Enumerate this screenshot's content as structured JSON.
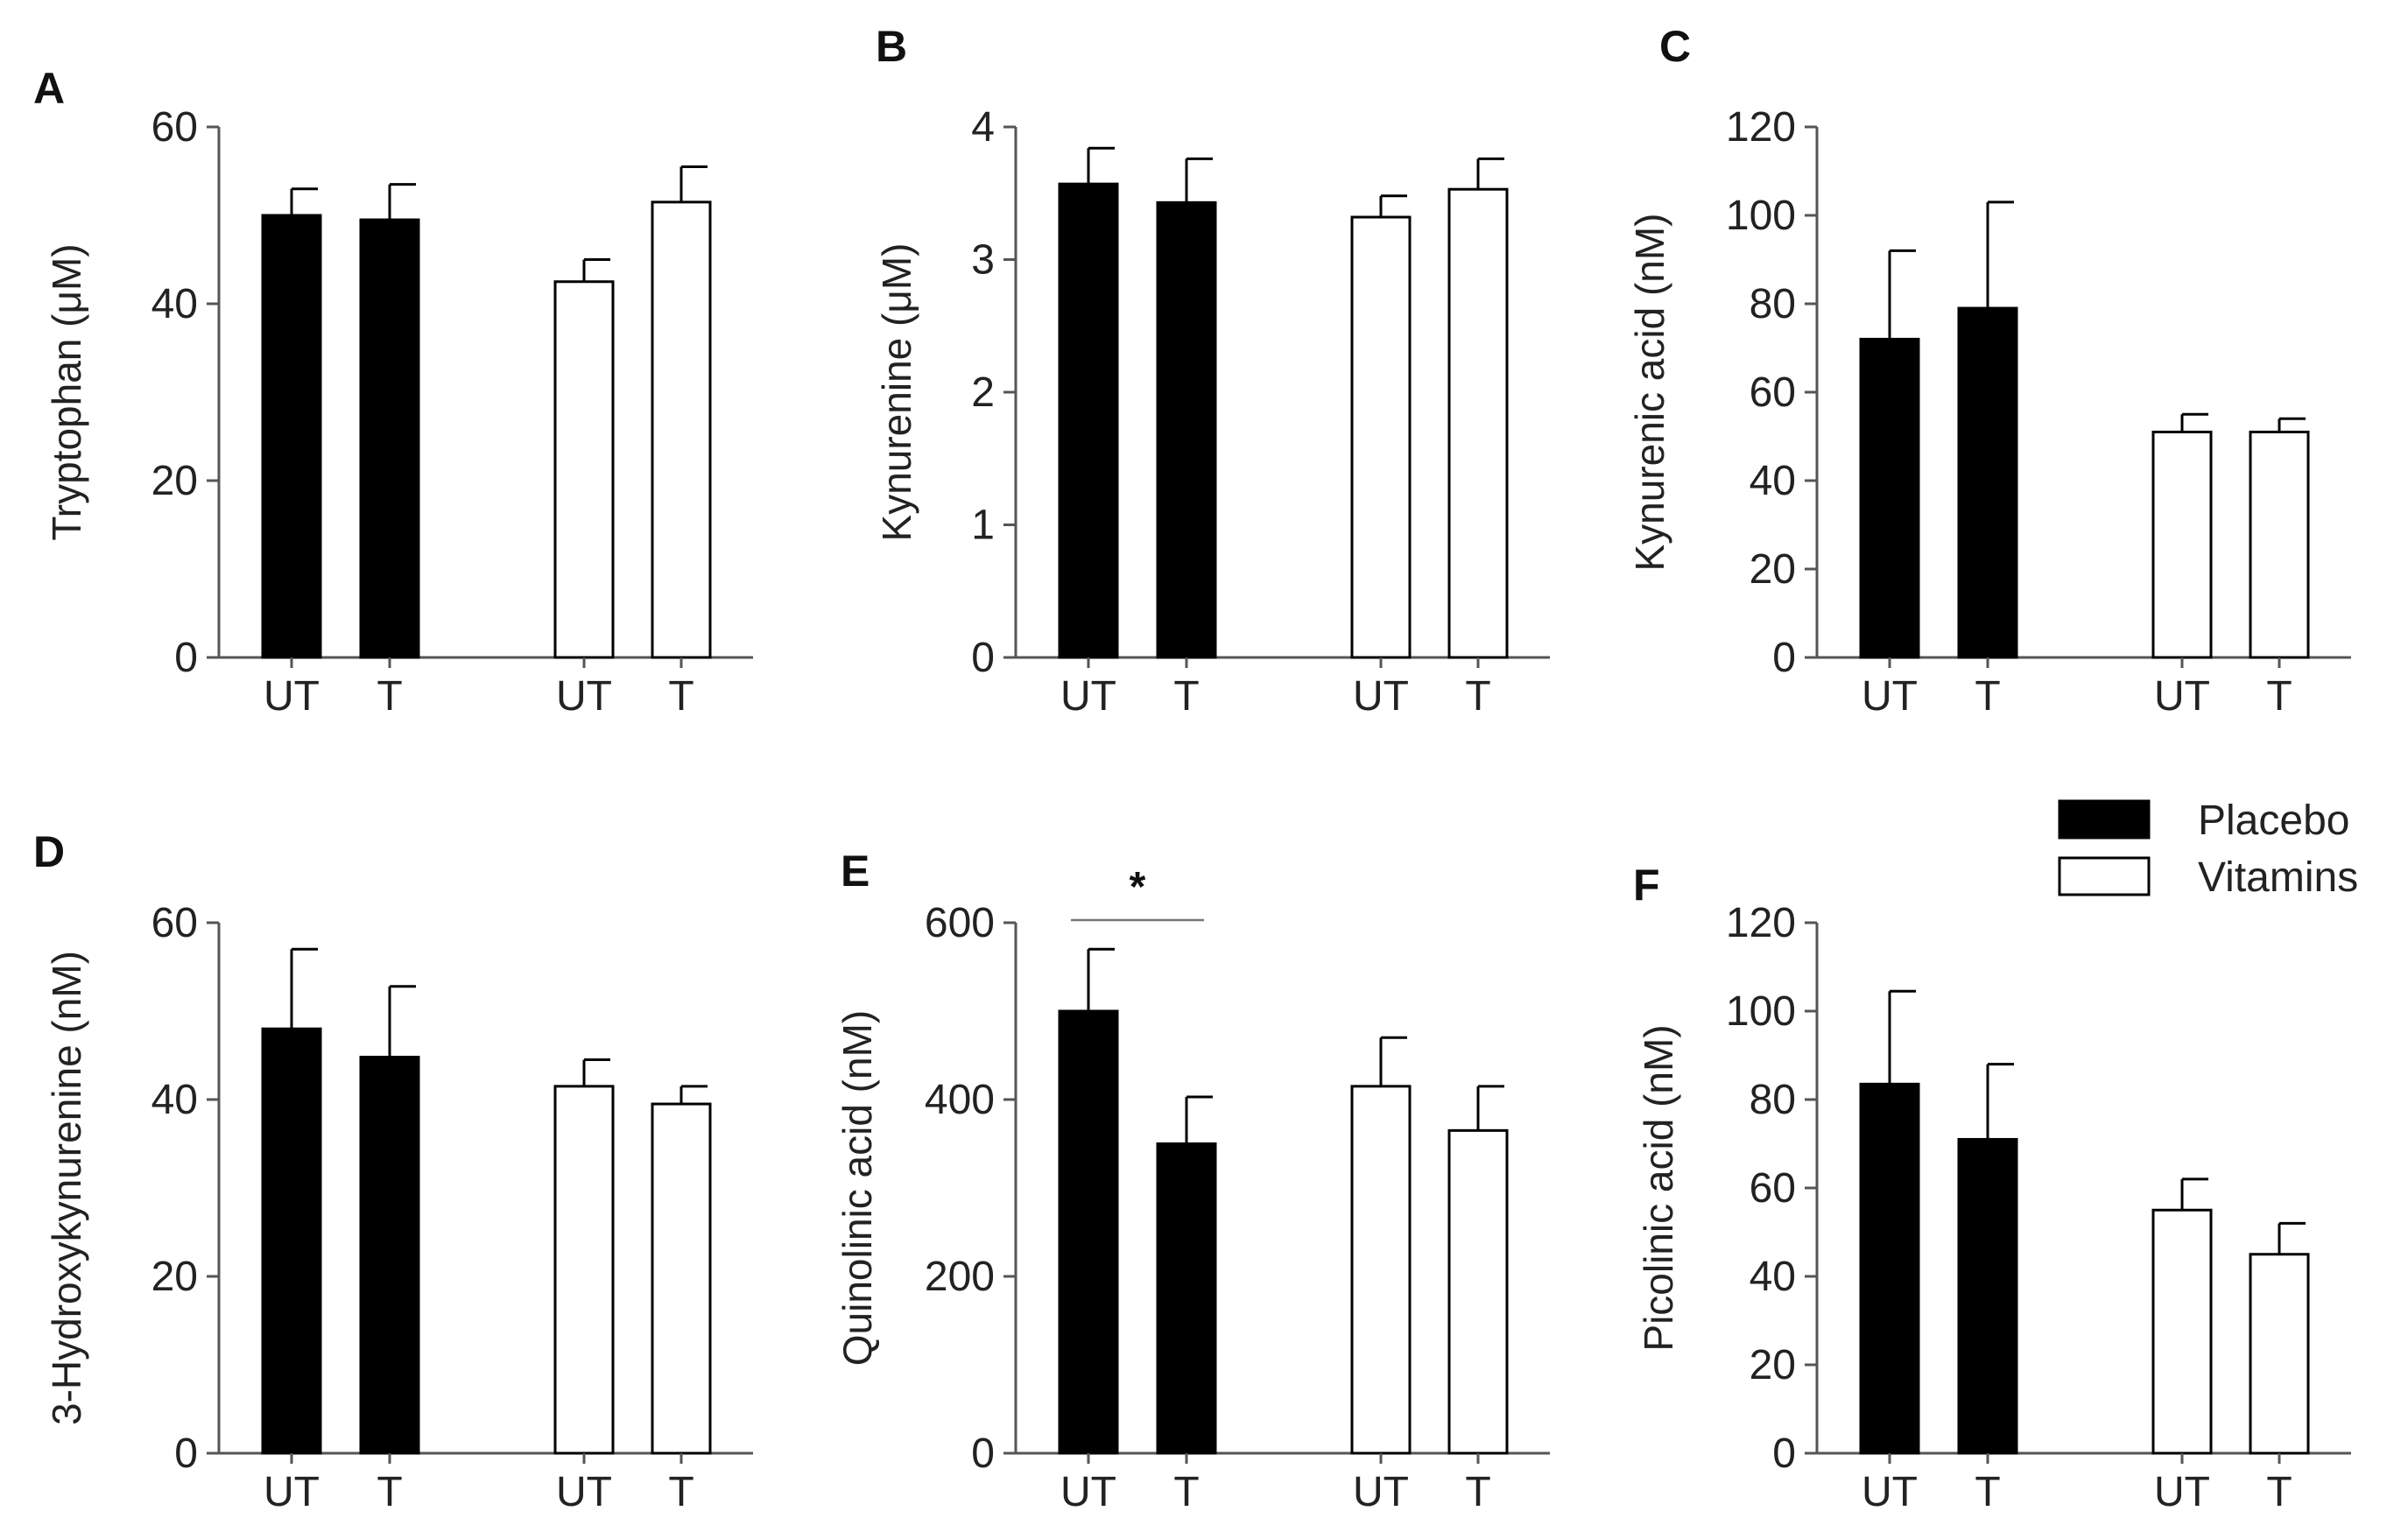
{
  "figure": {
    "legend": [
      {
        "label": "Placebo",
        "fill": "#000000"
      },
      {
        "label": "Vitamins",
        "fill": "#ffffff"
      }
    ],
    "colors": {
      "placebo": "#000000",
      "vitamins": "#ffffff",
      "axis": "#555555",
      "text": "#222222"
    }
  },
  "chart_data": [
    {
      "panel": "A",
      "type": "bar",
      "ylabel": "Tryptophan (μM)",
      "ylim": [
        0,
        60
      ],
      "yticks": [
        0,
        20,
        40,
        60
      ],
      "ytick_labels": [
        "0",
        "20",
        "40",
        "60"
      ],
      "categories": [
        "UT",
        "T",
        "UT",
        "T"
      ],
      "groups": [
        "Placebo",
        "Placebo",
        "Vitamins",
        "Vitamins"
      ],
      "values": [
        50,
        49.5,
        42.5,
        51.5
      ],
      "errors": [
        3,
        4,
        2.5,
        4
      ],
      "significance": null
    },
    {
      "panel": "B",
      "type": "bar",
      "ylabel": "Kynurenine (μM)",
      "ylim": [
        0,
        4
      ],
      "yticks": [
        0,
        1,
        2,
        3,
        4
      ],
      "ytick_labels": [
        "0",
        "1",
        "2",
        "3",
        "4"
      ],
      "categories": [
        "UT",
        "T",
        "UT",
        "T"
      ],
      "groups": [
        "Placebo",
        "Placebo",
        "Vitamins",
        "Vitamins"
      ],
      "values": [
        3.57,
        3.43,
        3.32,
        3.53
      ],
      "errors": [
        0.27,
        0.33,
        0.16,
        0.23
      ],
      "significance": null
    },
    {
      "panel": "C",
      "type": "bar",
      "ylabel": "Kynurenic acid (nM)",
      "ylim": [
        0,
        120
      ],
      "yticks": [
        0,
        20,
        40,
        60,
        80,
        100,
        120
      ],
      "ytick_labels": [
        "0",
        "20",
        "40",
        "60",
        "80",
        "100",
        "120"
      ],
      "categories": [
        "UT",
        "T",
        "UT",
        "T"
      ],
      "groups": [
        "Placebo",
        "Placebo",
        "Vitamins",
        "Vitamins"
      ],
      "values": [
        72,
        79,
        51,
        51
      ],
      "errors": [
        20,
        24,
        4,
        3
      ],
      "significance": null
    },
    {
      "panel": "D",
      "type": "bar",
      "ylabel": "3-Hydroxykynurenine (nM)",
      "ylim": [
        0,
        60
      ],
      "yticks": [
        0,
        20,
        40,
        60
      ],
      "ytick_labels": [
        "0",
        "20",
        "40",
        "60"
      ],
      "categories": [
        "UT",
        "T",
        "UT",
        "T"
      ],
      "groups": [
        "Placebo",
        "Placebo",
        "Vitamins",
        "Vitamins"
      ],
      "values": [
        48,
        44.8,
        41.5,
        39.5
      ],
      "errors": [
        9,
        8,
        3,
        2
      ],
      "significance": null
    },
    {
      "panel": "E",
      "type": "bar",
      "ylabel": "Quinolinic acid (nM)",
      "ylim": [
        0,
        600
      ],
      "yticks": [
        0,
        200,
        400,
        600
      ],
      "ytick_labels": [
        "0",
        "200",
        "400",
        "600"
      ],
      "categories": [
        "UT",
        "T",
        "UT",
        "T"
      ],
      "groups": [
        "Placebo",
        "Placebo",
        "Vitamins",
        "Vitamins"
      ],
      "values": [
        500,
        350,
        415,
        365
      ],
      "errors": [
        70,
        53,
        55,
        50
      ],
      "significance": {
        "between": [
          0,
          1
        ],
        "label": "*"
      }
    },
    {
      "panel": "F",
      "type": "bar",
      "ylabel": "Picolinic acid (nM)",
      "ylim": [
        0,
        120
      ],
      "yticks": [
        0,
        20,
        40,
        60,
        80,
        100,
        120
      ],
      "ytick_labels": [
        "0",
        "20",
        "40",
        "60",
        "80",
        "100",
        "120"
      ],
      "categories": [
        "UT",
        "T",
        "UT",
        "T"
      ],
      "groups": [
        "Placebo",
        "Placebo",
        "Vitamins",
        "Vitamins"
      ],
      "values": [
        83.5,
        71,
        55,
        45
      ],
      "errors": [
        21,
        17,
        7,
        7
      ],
      "significance": null
    }
  ]
}
